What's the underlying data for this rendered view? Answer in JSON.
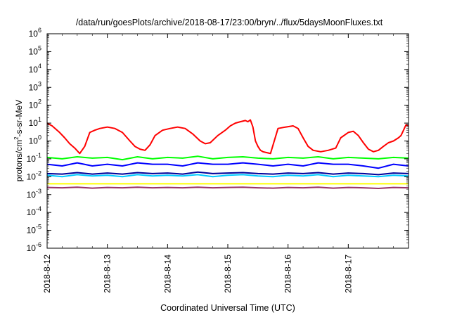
{
  "chart_data": {
    "type": "line",
    "title": "/data/run/goesPlots/archive/2018-08-17/23:00/bryn/../flux/5daysMoonFluxes.txt",
    "xlabel": "Coordinated Universal Time (UTC)",
    "ylabel": {
      "base": "protons/cm",
      "sup": "2",
      "rest": "-s-sr-MeV"
    },
    "yscale": "log",
    "ylim": [
      1e-06,
      1000000.0
    ],
    "yticks": [
      {
        "value": 1e-06,
        "base": "10",
        "exp": "-6"
      },
      {
        "value": 1e-05,
        "base": "10",
        "exp": "-5"
      },
      {
        "value": 0.0001,
        "base": "10",
        "exp": "-4"
      },
      {
        "value": 0.001,
        "base": "10",
        "exp": "-3"
      },
      {
        "value": 0.01,
        "base": "10",
        "exp": "-2"
      },
      {
        "value": 0.1,
        "base": "10",
        "exp": "-1"
      },
      {
        "value": 1.0,
        "base": "10",
        "exp": "0"
      },
      {
        "value": 10.0,
        "base": "10",
        "exp": "1"
      },
      {
        "value": 100.0,
        "base": "10",
        "exp": "2"
      },
      {
        "value": 1000.0,
        "base": "10",
        "exp": "3"
      },
      {
        "value": 10000.0,
        "base": "10",
        "exp": "4"
      },
      {
        "value": 100000.0,
        "base": "10",
        "exp": "5"
      },
      {
        "value": 1000000.0,
        "base": "10",
        "exp": "6"
      }
    ],
    "xlim": [
      "2018-08-12",
      "2018-08-18"
    ],
    "xticks": [
      {
        "value": "2018-08-12",
        "label": "2018-8-12"
      },
      {
        "value": "2018-08-13",
        "label": "2018-8-13"
      },
      {
        "value": "2018-08-14",
        "label": "2018-8-14"
      },
      {
        "value": "2018-08-15",
        "label": "2018-8-15"
      },
      {
        "value": "2018-08-16",
        "label": "2018-8-16"
      },
      {
        "value": "2018-08-17",
        "label": "2018-8-17"
      }
    ],
    "grid": false,
    "legend": "none",
    "series": [
      {
        "color": "#ff0000",
        "x": [
          "2018-08-12T00:00",
          "2018-08-12T02:00",
          "2018-08-12T05:00",
          "2018-08-12T07:00",
          "2018-08-12T09:00",
          "2018-08-12T11:00",
          "2018-08-12T13:00",
          "2018-08-12T15:00",
          "2018-08-12T17:00",
          "2018-08-12T19:00",
          "2018-08-12T21:00",
          "2018-08-13T00:00",
          "2018-08-13T03:00",
          "2018-08-13T06:00",
          "2018-08-13T09:00",
          "2018-08-13T11:00",
          "2018-08-13T13:00",
          "2018-08-13T15:00",
          "2018-08-13T17:00",
          "2018-08-13T19:00",
          "2018-08-13T22:00",
          "2018-08-14T01:00",
          "2018-08-14T04:00",
          "2018-08-14T07:00",
          "2018-08-14T10:00",
          "2018-08-14T13:00",
          "2018-08-14T15:00",
          "2018-08-14T17:00",
          "2018-08-14T20:00",
          "2018-08-14T23:00",
          "2018-08-15T01:00",
          "2018-08-15T03:00",
          "2018-08-15T05:00",
          "2018-08-15T07:00",
          "2018-08-15T08:00",
          "2018-08-15T09:00",
          "2018-08-15T10:00",
          "2018-08-15T11:00",
          "2018-08-15T12:00",
          "2018-08-15T13:00",
          "2018-08-15T14:00",
          "2018-08-15T17:00",
          "2018-08-15T20:00",
          "2018-08-15T23:00",
          "2018-08-16T02:00",
          "2018-08-16T04:00",
          "2018-08-16T06:00",
          "2018-08-16T08:00",
          "2018-08-16T10:00",
          "2018-08-16T13:00",
          "2018-08-16T16:00",
          "2018-08-16T19:00",
          "2018-08-16T21:00",
          "2018-08-17T00:00",
          "2018-08-17T02:00",
          "2018-08-17T04:00",
          "2018-08-17T06:00",
          "2018-08-17T08:00",
          "2018-08-17T10:00",
          "2018-08-17T12:00",
          "2018-08-17T14:00",
          "2018-08-17T16:00",
          "2018-08-17T18:00",
          "2018-08-17T20:00",
          "2018-08-17T21:00",
          "2018-08-17T22:00",
          "2018-08-17T23:00",
          "2018-08-17T23:59"
        ],
        "values": [
          10,
          7,
          3,
          1.5,
          0.7,
          0.4,
          0.2,
          0.5,
          3,
          4,
          5,
          6,
          5,
          3,
          1,
          0.5,
          0.35,
          0.3,
          0.6,
          2,
          4,
          5,
          6,
          5,
          2.5,
          1,
          0.7,
          0.8,
          2,
          4,
          7,
          10,
          12,
          14,
          12,
          15,
          6,
          1,
          0.5,
          0.3,
          0.25,
          0.2,
          5,
          6,
          7,
          5,
          1.5,
          0.5,
          0.3,
          0.25,
          0.3,
          0.4,
          1.5,
          3,
          3.5,
          2,
          0.8,
          0.35,
          0.25,
          0.3,
          0.5,
          0.8,
          1,
          1.5,
          2,
          4,
          8,
          7
        ]
      },
      {
        "color": "#00ff00",
        "x": [
          "2018-08-12T00:00",
          "2018-08-12T06:00",
          "2018-08-12T12:00",
          "2018-08-12T18:00",
          "2018-08-13T00:00",
          "2018-08-13T06:00",
          "2018-08-13T12:00",
          "2018-08-13T18:00",
          "2018-08-14T00:00",
          "2018-08-14T06:00",
          "2018-08-14T12:00",
          "2018-08-14T18:00",
          "2018-08-15T00:00",
          "2018-08-15T06:00",
          "2018-08-15T12:00",
          "2018-08-15T18:00",
          "2018-08-16T00:00",
          "2018-08-16T06:00",
          "2018-08-16T12:00",
          "2018-08-16T18:00",
          "2018-08-17T00:00",
          "2018-08-17T06:00",
          "2018-08-17T12:00",
          "2018-08-17T18:00",
          "2018-08-17T23:59"
        ],
        "values": [
          0.12,
          0.1,
          0.13,
          0.11,
          0.12,
          0.09,
          0.13,
          0.1,
          0.12,
          0.11,
          0.14,
          0.1,
          0.12,
          0.13,
          0.11,
          0.1,
          0.12,
          0.11,
          0.13,
          0.1,
          0.12,
          0.11,
          0.1,
          0.12,
          0.11
        ]
      },
      {
        "color": "#0000ff",
        "x": [
          "2018-08-12T00:00",
          "2018-08-12T06:00",
          "2018-08-12T12:00",
          "2018-08-12T18:00",
          "2018-08-13T00:00",
          "2018-08-13T06:00",
          "2018-08-13T12:00",
          "2018-08-13T18:00",
          "2018-08-14T00:00",
          "2018-08-14T06:00",
          "2018-08-14T12:00",
          "2018-08-14T18:00",
          "2018-08-15T00:00",
          "2018-08-15T06:00",
          "2018-08-15T12:00",
          "2018-08-15T18:00",
          "2018-08-16T00:00",
          "2018-08-16T06:00",
          "2018-08-16T12:00",
          "2018-08-16T18:00",
          "2018-08-17T00:00",
          "2018-08-17T06:00",
          "2018-08-17T12:00",
          "2018-08-17T18:00",
          "2018-08-17T23:59"
        ],
        "values": [
          0.05,
          0.04,
          0.06,
          0.04,
          0.05,
          0.04,
          0.06,
          0.05,
          0.05,
          0.04,
          0.06,
          0.05,
          0.05,
          0.06,
          0.05,
          0.04,
          0.05,
          0.04,
          0.06,
          0.05,
          0.05,
          0.04,
          0.03,
          0.05,
          0.04
        ]
      },
      {
        "color": "#00ccff",
        "x": [
          "2018-08-12T00:00",
          "2018-08-12T06:00",
          "2018-08-12T12:00",
          "2018-08-12T18:00",
          "2018-08-13T00:00",
          "2018-08-13T06:00",
          "2018-08-13T12:00",
          "2018-08-13T18:00",
          "2018-08-14T00:00",
          "2018-08-14T06:00",
          "2018-08-14T12:00",
          "2018-08-14T18:00",
          "2018-08-15T00:00",
          "2018-08-15T06:00",
          "2018-08-15T12:00",
          "2018-08-15T18:00",
          "2018-08-16T00:00",
          "2018-08-16T06:00",
          "2018-08-16T12:00",
          "2018-08-16T18:00",
          "2018-08-17T00:00",
          "2018-08-17T06:00",
          "2018-08-17T12:00",
          "2018-08-17T18:00",
          "2018-08-17T23:59"
        ],
        "values": [
          0.012,
          0.01,
          0.013,
          0.011,
          0.012,
          0.01,
          0.013,
          0.011,
          0.012,
          0.011,
          0.013,
          0.01,
          0.012,
          0.013,
          0.011,
          0.01,
          0.012,
          0.011,
          0.013,
          0.01,
          0.012,
          0.011,
          0.01,
          0.012,
          0.011
        ]
      },
      {
        "color": "#000099",
        "x": [
          "2018-08-12T00:00",
          "2018-08-12T06:00",
          "2018-08-12T12:00",
          "2018-08-12T18:00",
          "2018-08-13T00:00",
          "2018-08-13T06:00",
          "2018-08-13T12:00",
          "2018-08-13T18:00",
          "2018-08-14T00:00",
          "2018-08-14T06:00",
          "2018-08-14T12:00",
          "2018-08-14T18:00",
          "2018-08-15T00:00",
          "2018-08-15T06:00",
          "2018-08-15T12:00",
          "2018-08-15T18:00",
          "2018-08-16T00:00",
          "2018-08-16T06:00",
          "2018-08-16T12:00",
          "2018-08-16T18:00",
          "2018-08-17T00:00",
          "2018-08-17T06:00",
          "2018-08-17T12:00",
          "2018-08-17T18:00",
          "2018-08-17T23:59"
        ],
        "values": [
          0.015,
          0.014,
          0.017,
          0.014,
          0.016,
          0.014,
          0.017,
          0.015,
          0.016,
          0.014,
          0.018,
          0.015,
          0.016,
          0.017,
          0.015,
          0.014,
          0.016,
          0.015,
          0.017,
          0.014,
          0.016,
          0.015,
          0.013,
          0.016,
          0.015
        ]
      },
      {
        "color": "#ffff00",
        "x": [
          "2018-08-12T00:00",
          "2018-08-17T23:59"
        ],
        "values": [
          0.004,
          0.004
        ]
      },
      {
        "color": "#993366",
        "x": [
          "2018-08-12T00:00",
          "2018-08-12T06:00",
          "2018-08-12T12:00",
          "2018-08-12T18:00",
          "2018-08-13T00:00",
          "2018-08-13T06:00",
          "2018-08-13T12:00",
          "2018-08-13T18:00",
          "2018-08-14T00:00",
          "2018-08-14T06:00",
          "2018-08-14T12:00",
          "2018-08-14T18:00",
          "2018-08-15T00:00",
          "2018-08-15T06:00",
          "2018-08-15T12:00",
          "2018-08-15T18:00",
          "2018-08-16T00:00",
          "2018-08-16T06:00",
          "2018-08-16T12:00",
          "2018-08-16T18:00",
          "2018-08-17T00:00",
          "2018-08-17T06:00",
          "2018-08-17T12:00",
          "2018-08-17T18:00",
          "2018-08-17T23:59"
        ],
        "values": [
          0.0025,
          0.0024,
          0.0026,
          0.0023,
          0.0025,
          0.0024,
          0.0026,
          0.0024,
          0.0025,
          0.0024,
          0.0026,
          0.0024,
          0.0025,
          0.0026,
          0.0024,
          0.0023,
          0.0025,
          0.0024,
          0.0026,
          0.0023,
          0.0025,
          0.0024,
          0.0022,
          0.0025,
          0.0024
        ]
      }
    ]
  }
}
